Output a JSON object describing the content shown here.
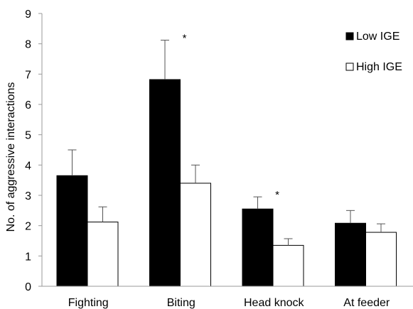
{
  "chart_data": {
    "type": "bar",
    "title": "",
    "xlabel": "",
    "ylabel": "No. of aggressive interactions",
    "categories": [
      "Fighting",
      "Biting",
      "Head knock",
      "At feeder"
    ],
    "series": [
      {
        "name": "Low IGE",
        "color": "#000000",
        "values": [
          3.65,
          6.82,
          2.55,
          2.08
        ],
        "error": [
          0.85,
          1.3,
          0.4,
          0.42
        ]
      },
      {
        "name": "High IGE",
        "color": "#ffffff",
        "values": [
          2.12,
          3.4,
          1.35,
          1.78
        ],
        "error": [
          0.5,
          0.6,
          0.22,
          0.28
        ]
      }
    ],
    "ylim": [
      0,
      9
    ],
    "yticks": [
      0,
      1,
      2,
      3,
      4,
      5,
      6,
      7,
      8,
      9
    ],
    "annotations": [
      {
        "text": "*",
        "category_index": 1
      },
      {
        "text": "*",
        "category_index": 2
      }
    ],
    "grid": false,
    "legend_position": "top-right"
  }
}
